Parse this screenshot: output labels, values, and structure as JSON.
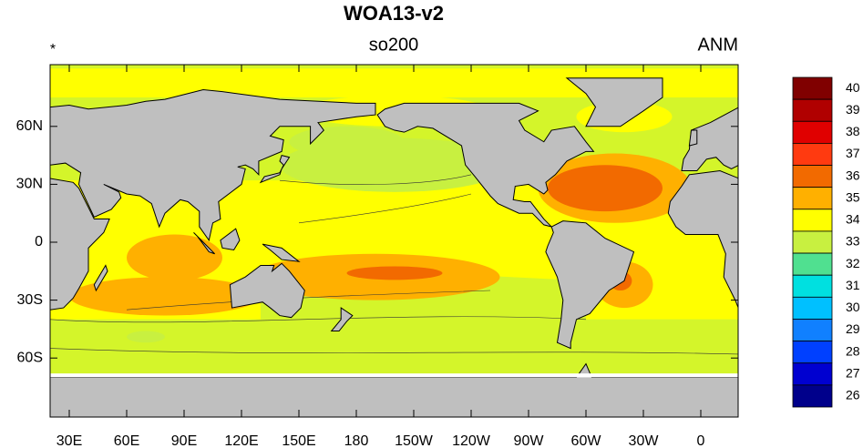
{
  "header": {
    "title": "WOA13-v2",
    "left": "*",
    "center": "so200",
    "right": "ANM"
  },
  "map": {
    "lat_labels": [
      "60N",
      "30N",
      "0",
      "30S",
      "60S"
    ],
    "lon_labels": [
      "30E",
      "60E",
      "90E",
      "120E",
      "150E",
      "180",
      "150W",
      "120W",
      "90W",
      "60W",
      "30W",
      "0"
    ]
  },
  "colorbar": {
    "levels": [
      40,
      39,
      38,
      37,
      36,
      35,
      34,
      33,
      32,
      31,
      30,
      29,
      28,
      27,
      26
    ],
    "colors": [
      "#800000",
      "#b00000",
      "#e00000",
      "#ff3a10",
      "#f26a00",
      "#ffb000",
      "#ffff00",
      "#c8f040",
      "#50e090",
      "#00e0e0",
      "#00c0ff",
      "#1080ff",
      "#0040ff",
      "#0000d0",
      "#00008b"
    ]
  }
}
